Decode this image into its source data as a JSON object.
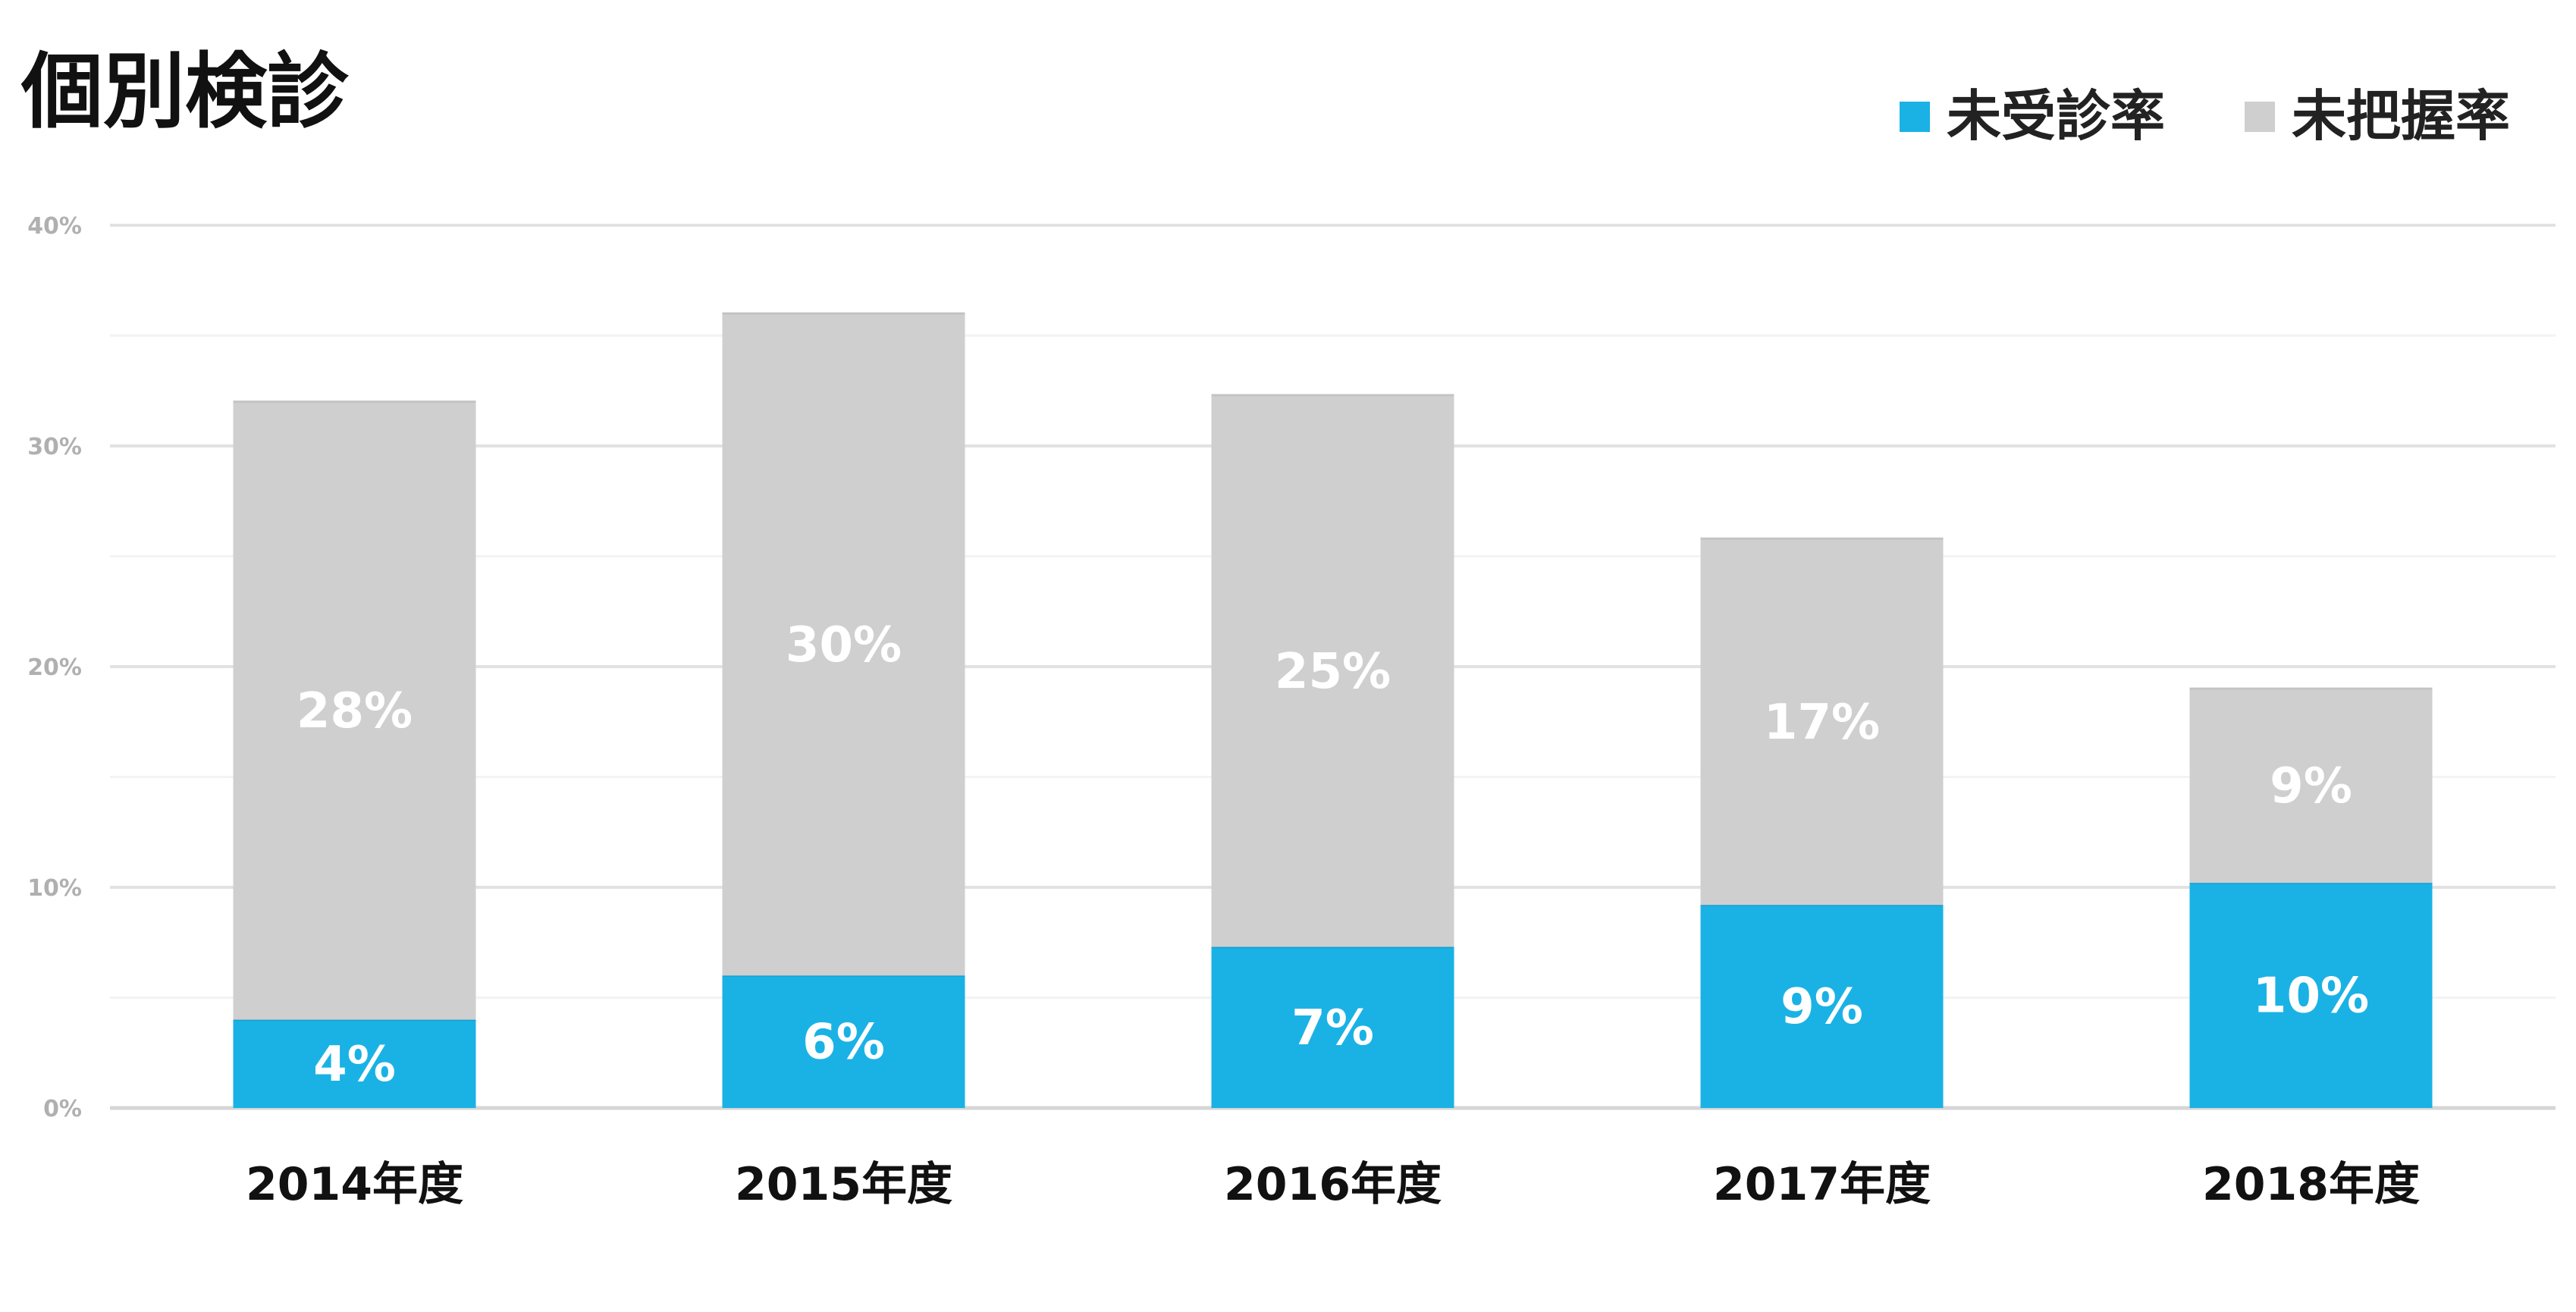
{
  "title": "個別検診",
  "legend": {
    "position": "top-right",
    "items": [
      {
        "label": "未受診率",
        "color": "#1ab2e5"
      },
      {
        "label": "未把握率",
        "color": "#d0cfd0"
      }
    ]
  },
  "chart_data": {
    "type": "bar",
    "stacked": true,
    "title": "個別検診",
    "xlabel": "",
    "ylabel": "",
    "categories": [
      "2014年度",
      "2015年度",
      "2016年度",
      "2017年度",
      "2018年度"
    ],
    "series": [
      {
        "name": "未受診率",
        "color": "#1ab2e5",
        "values": [
          4,
          6,
          7.3,
          9.2,
          10.2
        ],
        "labels": [
          "4%",
          "6%",
          "7%",
          "9%",
          "10%"
        ]
      },
      {
        "name": "未把握率",
        "color": "#d0cfd0",
        "values": [
          28,
          30,
          25,
          16.6,
          8.8
        ],
        "labels": [
          "28%",
          "30%",
          "25%",
          "17%",
          "9%"
        ]
      }
    ],
    "ylim": [
      0,
      40
    ],
    "yticks": [
      0,
      10,
      20,
      30,
      40
    ],
    "ytick_labels": [
      "0%",
      "10%",
      "20%",
      "30%",
      "40%"
    ],
    "minor_gridlines": [
      5,
      15,
      25,
      35
    ],
    "grid": true
  }
}
